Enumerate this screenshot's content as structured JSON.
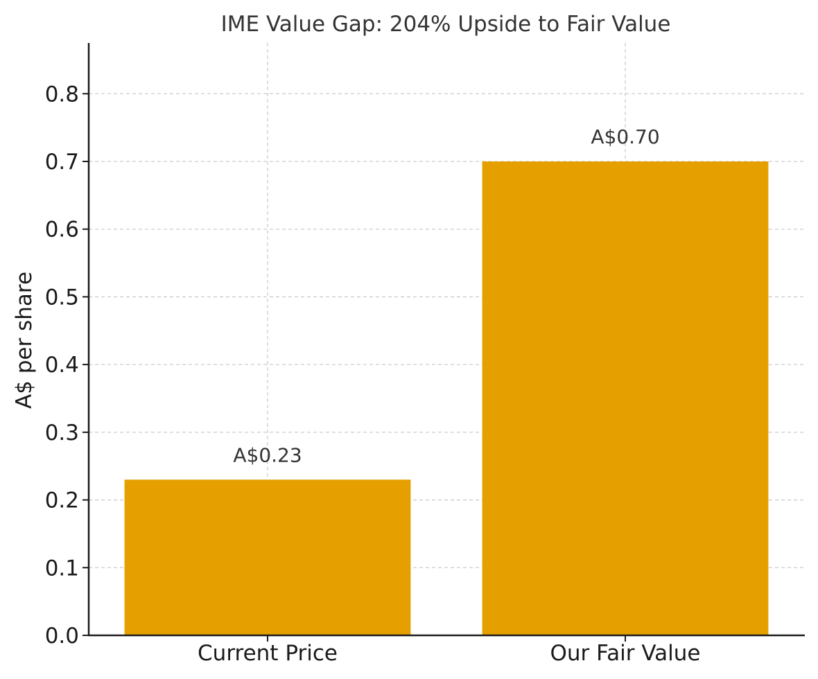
{
  "chart_data": {
    "type": "bar",
    "title": "IME Value Gap: 204% Upside to Fair Value",
    "categories": [
      "Current Price",
      "Our Fair Value"
    ],
    "values": [
      0.23,
      0.7
    ],
    "data_labels": [
      "A$0.23",
      "A$0.70"
    ],
    "xlabel": "",
    "ylabel": "A$ per share",
    "ylim": [
      0,
      0.875
    ],
    "yticks": [
      0.0,
      0.1,
      0.2,
      0.3,
      0.4,
      0.5,
      0.6,
      0.7,
      0.8
    ],
    "ytick_labels": [
      "0.0",
      "0.1",
      "0.2",
      "0.3",
      "0.4",
      "0.5",
      "0.6",
      "0.7",
      "0.8"
    ],
    "grid": true,
    "bar_color": "#E5A000"
  }
}
